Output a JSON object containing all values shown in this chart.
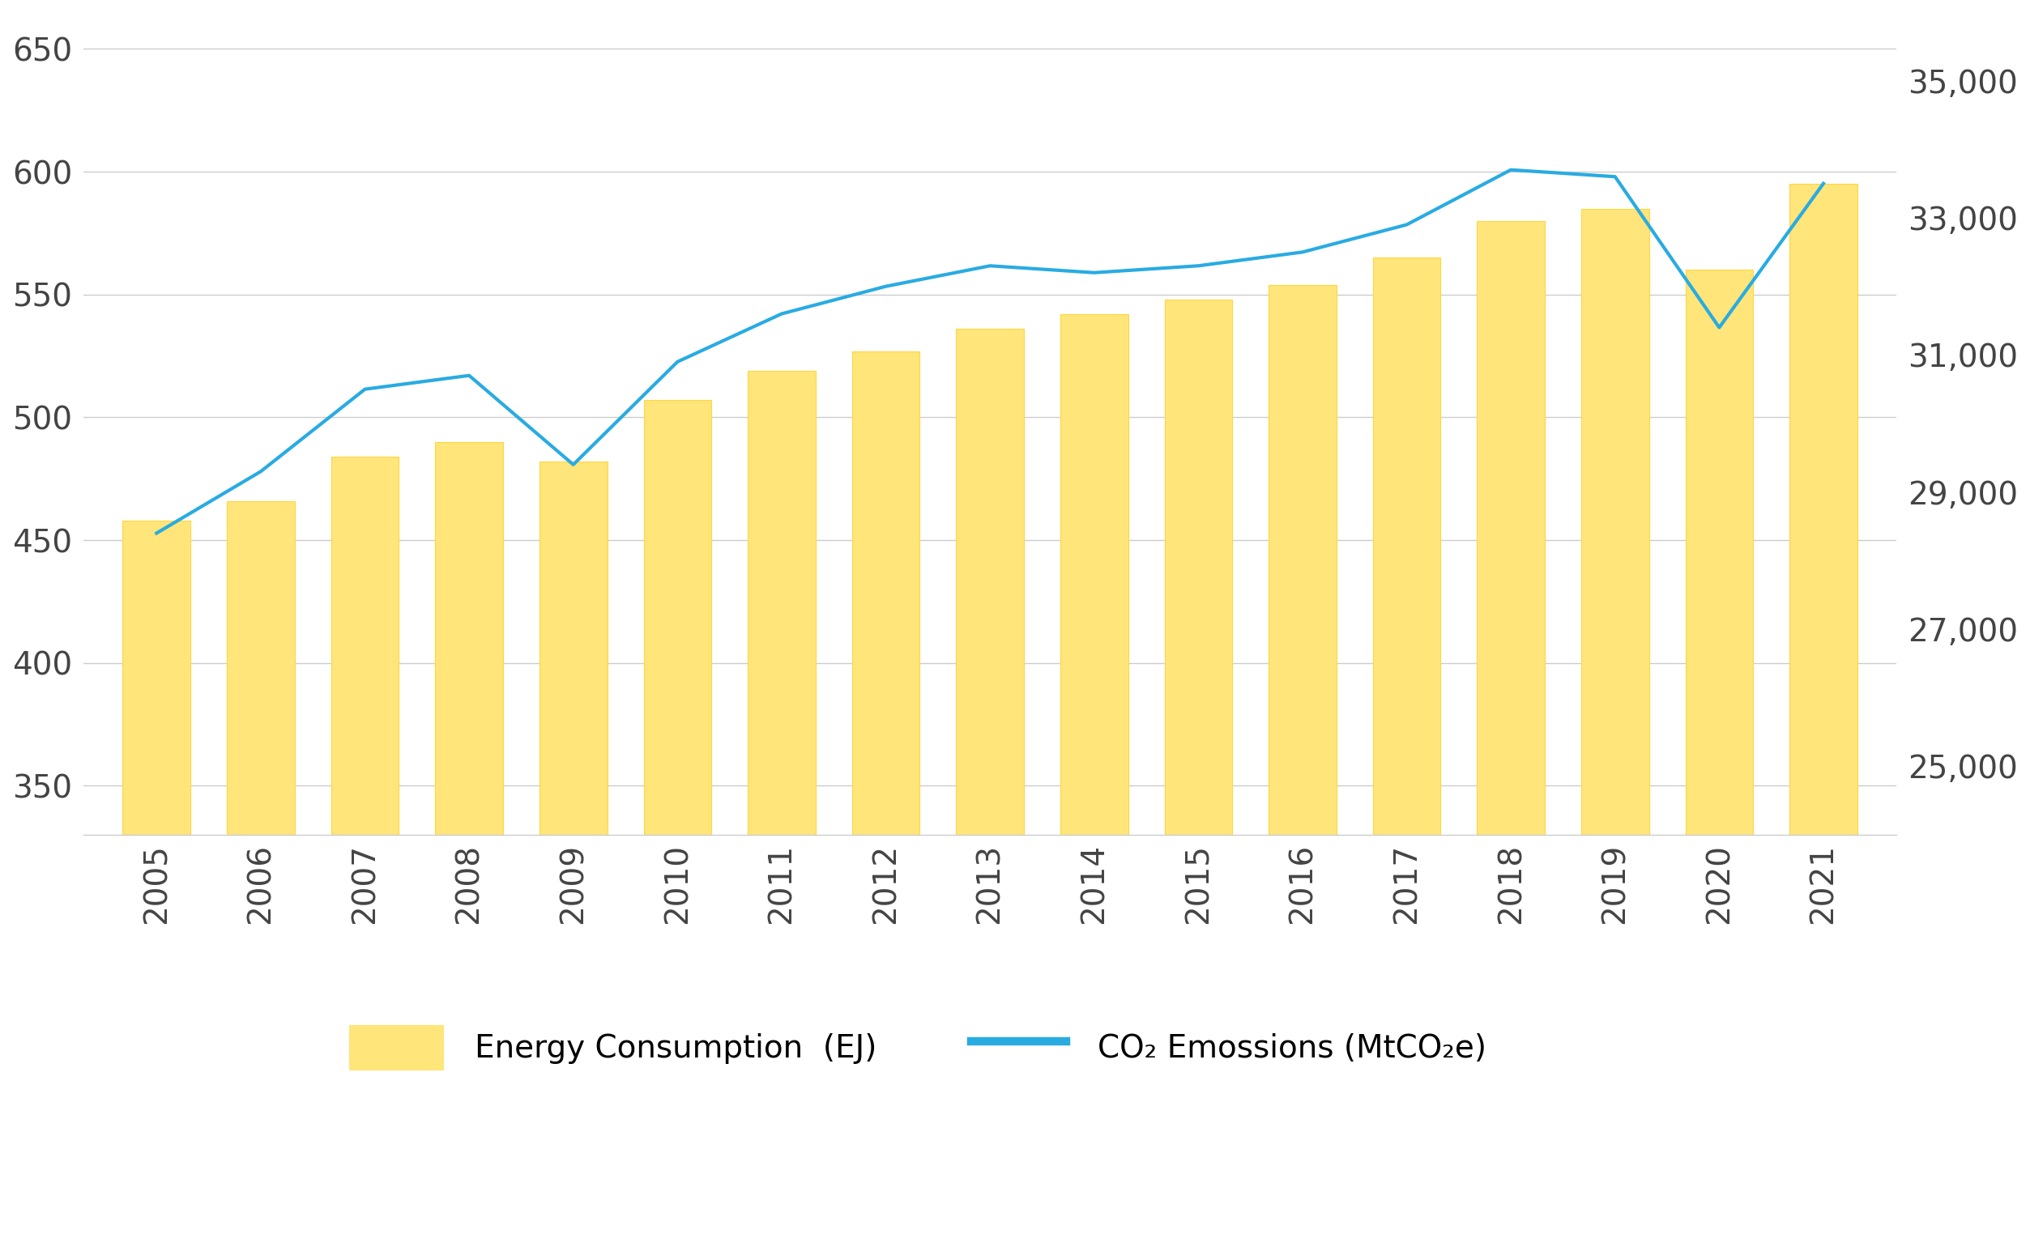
{
  "years": [
    2005,
    2006,
    2007,
    2008,
    2009,
    2010,
    2011,
    2012,
    2013,
    2014,
    2015,
    2016,
    2017,
    2018,
    2019,
    2020,
    2021
  ],
  "energy_consumption": [
    458,
    466,
    484,
    490,
    482,
    507,
    519,
    527,
    536,
    542,
    548,
    554,
    565,
    580,
    585,
    560,
    595
  ],
  "co2_emissions": [
    28400,
    29300,
    30500,
    30700,
    29400,
    30900,
    31600,
    32000,
    32300,
    32200,
    32300,
    32500,
    32900,
    33700,
    33600,
    31400,
    33500
  ],
  "bar_color": "#FFE57A",
  "bar_edgecolor": "#FFD740",
  "line_color": "#29ABE2",
  "left_ylim": [
    330,
    665
  ],
  "right_ylim": [
    24000,
    36000
  ],
  "left_yticks": [
    350,
    400,
    450,
    500,
    550,
    600,
    650
  ],
  "right_yticks": [
    25000,
    27000,
    29000,
    31000,
    33000,
    35000
  ],
  "background_color": "#ffffff",
  "grid_color": "#cccccc",
  "legend_bar_label": "Energy Consumption  (EJ)",
  "legend_line_label": "CO₂ Emossions (MtCO₂e)",
  "line_width": 3.0,
  "tick_fontsize": 28,
  "legend_fontsize": 28
}
